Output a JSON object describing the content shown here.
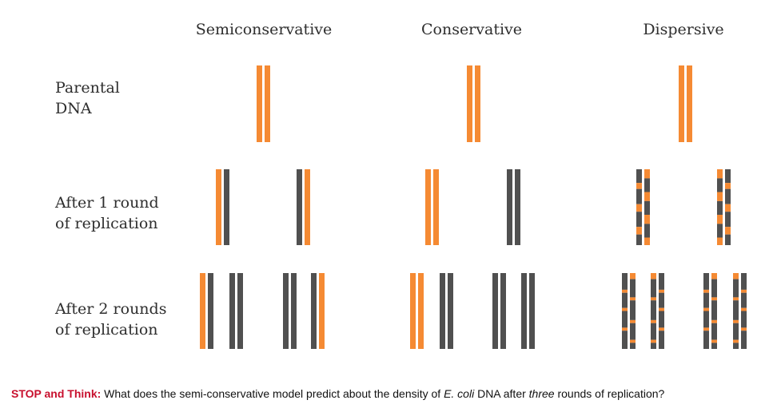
{
  "colors": {
    "parental": "#f58a33",
    "new": "#505050"
  },
  "columns": [
    {
      "id": "semiconservative",
      "title": "Semiconservative"
    },
    {
      "id": "conservative",
      "title": "Conservative"
    },
    {
      "id": "dispersive",
      "title": "Dispersive"
    }
  ],
  "rows": [
    {
      "id": "parental",
      "line1": "Parental",
      "line2": "DNA"
    },
    {
      "id": "round1",
      "line1": "After 1 round",
      "line2": "of replication"
    },
    {
      "id": "round2",
      "line1": "After 2 rounds",
      "line2": "of replication"
    }
  ],
  "diagram": {
    "semiconservative": {
      "parental": [
        [
          "parental",
          "parental"
        ]
      ],
      "round1": [
        [
          "parental",
          "new"
        ],
        [
          "new",
          "parental"
        ]
      ],
      "round2": [
        [
          "parental",
          "new"
        ],
        [
          "new",
          "new"
        ],
        [
          "new",
          "new"
        ],
        [
          "new",
          "parental"
        ]
      ]
    },
    "conservative": {
      "parental": [
        [
          "parental",
          "parental"
        ]
      ],
      "round1": [
        [
          "parental",
          "parental"
        ],
        [
          "new",
          "new"
        ]
      ],
      "round2": [
        [
          "parental",
          "parental"
        ],
        [
          "new",
          "new"
        ],
        [
          "new",
          "new"
        ],
        [
          "new",
          "new"
        ]
      ]
    },
    "dispersive": {
      "parental": [
        [
          "parental",
          "parental"
        ]
      ],
      "round1": [
        [
          "mixed",
          "mixed"
        ],
        [
          "mixed",
          "mixed"
        ]
      ],
      "round2": [
        [
          "mixed",
          "mixed"
        ],
        [
          "mixed",
          "mixed"
        ],
        [
          "mixed",
          "mixed"
        ],
        [
          "mixed",
          "mixed"
        ]
      ]
    }
  },
  "footer": {
    "lead": "STOP and Think:",
    "part1": " What does the semi-conservative model predict about the density of ",
    "species": "E. coli",
    "part2": " DNA after ",
    "emph": "three",
    "part3": " rounds of replication?"
  }
}
